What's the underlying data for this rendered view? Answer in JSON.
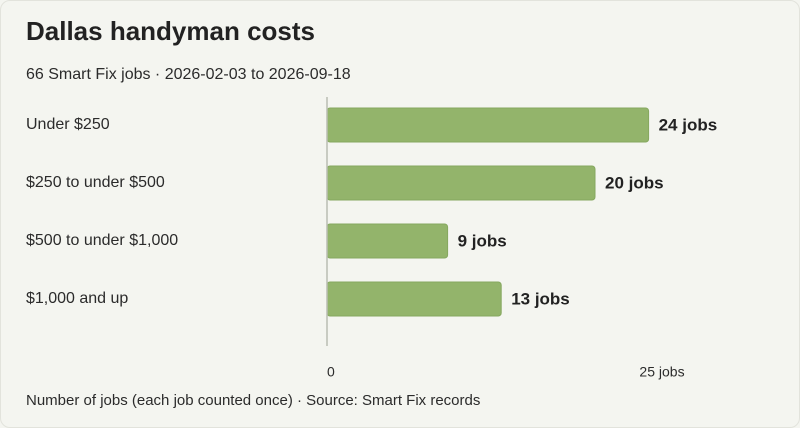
{
  "header": {
    "title": "Dallas handyman costs",
    "subtitle": "66 Smart Fix jobs · 2026-02-03 to 2026-09-18"
  },
  "footer": {
    "note": "Number of jobs (each job counted once) · Source: Smart Fix records"
  },
  "colors": {
    "bar": "#93b46b",
    "bar_stroke": "#86a85f",
    "axis": "#b9bdb2"
  },
  "chart_data": {
    "type": "bar",
    "orientation": "horizontal",
    "title": "Dallas handyman costs",
    "subtitle": "66 Smart Fix jobs · 2026-02-03 to 2026-09-18",
    "categories": [
      "Under $250",
      "$250 to under $500",
      "$500 to under $1,000",
      "$1,000 and up"
    ],
    "values": [
      24,
      20,
      9,
      13
    ],
    "value_labels": [
      "24 jobs",
      "20 jobs",
      "9 jobs",
      "13 jobs"
    ],
    "xlim": [
      0,
      25
    ],
    "x_ticks": [
      {
        "value": 0,
        "label": "0"
      },
      {
        "value": 25,
        "label": "25 jobs"
      }
    ],
    "grid": false
  }
}
